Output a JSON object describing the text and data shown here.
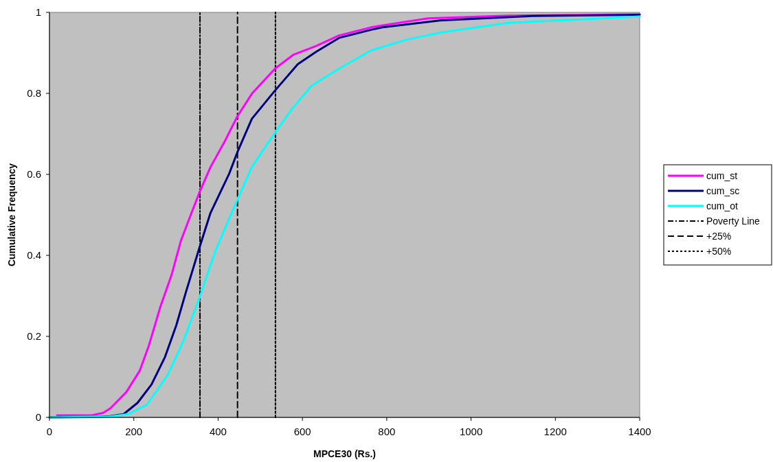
{
  "chart_data": {
    "type": "line",
    "xlabel": "MPCE30 (Rs.)",
    "ylabel": "Cumulative Frequency",
    "xlim": [
      0,
      1400
    ],
    "xticks": [
      0,
      200,
      400,
      600,
      800,
      1000,
      1200,
      1400
    ],
    "ylim": [
      0,
      1
    ],
    "yticks": [
      0,
      0.2,
      0.4,
      0.6,
      0.8,
      1
    ],
    "grid": false,
    "legend": "right",
    "marker": "none",
    "line_style": "solid",
    "series": [
      {
        "name": "cum_st",
        "color": "#ff00ff",
        "x": [
          18,
          100,
          127,
          144,
          182,
          214,
          236,
          263,
          290,
          312,
          337,
          356,
          382,
          415,
          445,
          480,
          535,
          578,
          633,
          687,
          763,
          790,
          898,
          1089,
          1400
        ],
        "values": [
          0.005,
          0.005,
          0.011,
          0.022,
          0.062,
          0.115,
          0.178,
          0.273,
          0.353,
          0.437,
          0.505,
          0.556,
          0.618,
          0.68,
          0.742,
          0.799,
          0.861,
          0.895,
          0.917,
          0.943,
          0.963,
          0.968,
          0.985,
          0.992,
          0.995
        ]
      },
      {
        "name": "cum_sc",
        "color": "#000080",
        "x": [
          0,
          100,
          144,
          176,
          209,
          242,
          274,
          301,
          323,
          356,
          382,
          426,
          447,
          480,
          535,
          589,
          633,
          687,
          763,
          790,
          927,
          1144,
          1400
        ],
        "values": [
          0,
          0.001,
          0.003,
          0.008,
          0.036,
          0.081,
          0.149,
          0.228,
          0.307,
          0.42,
          0.505,
          0.601,
          0.658,
          0.737,
          0.807,
          0.872,
          0.903,
          0.937,
          0.957,
          0.963,
          0.98,
          0.991,
          0.994
        ]
      },
      {
        "name": "cum_ot",
        "color": "#00ffff",
        "x": [
          0,
          144,
          187,
          231,
          280,
          318,
          356,
          393,
          432,
          480,
          535,
          578,
          622,
          687,
          763,
          845,
          927,
          1089,
          1252,
          1400
        ],
        "values": [
          0,
          0.002,
          0.008,
          0.031,
          0.104,
          0.189,
          0.296,
          0.409,
          0.505,
          0.618,
          0.703,
          0.765,
          0.819,
          0.861,
          0.906,
          0.932,
          0.95,
          0.974,
          0.982,
          0.99
        ]
      },
      {
        "name": "Poverty Line",
        "color": "#000000",
        "line_style": "dashdot",
        "x": [
          357,
          357
        ],
        "values": [
          0,
          1
        ]
      },
      {
        "name": "+25%",
        "color": "#000000",
        "line_style": "dashed",
        "x": [
          446,
          446
        ],
        "values": [
          0,
          1
        ]
      },
      {
        "name": "+50%",
        "color": "#000000",
        "line_style": "dotted",
        "x": [
          536,
          536
        ],
        "values": [
          0,
          1
        ]
      }
    ]
  }
}
